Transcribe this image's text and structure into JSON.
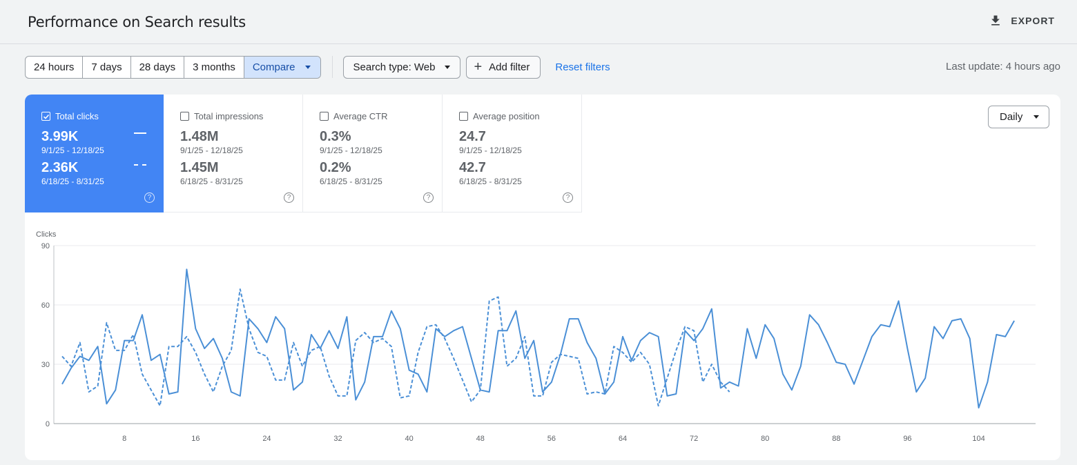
{
  "header": {
    "title": "Performance on Search results",
    "export_label": "EXPORT"
  },
  "controls": {
    "ranges": [
      "24 hours",
      "7 days",
      "28 days",
      "3 months"
    ],
    "compare_label": "Compare",
    "search_type_label": "Search type: Web",
    "add_filter_label": "Add filter",
    "reset_label": "Reset filters",
    "last_update": "Last update: 4 hours ago"
  },
  "metrics": [
    {
      "label": "Total clicks",
      "value1": "3.99K",
      "range1": "9/1/25 - 12/18/25",
      "value2": "2.36K",
      "range2": "6/18/25 - 8/31/25",
      "active": true
    },
    {
      "label": "Total impressions",
      "value1": "1.48M",
      "range1": "9/1/25 - 12/18/25",
      "value2": "1.45M",
      "range2": "6/18/25 - 8/31/25",
      "active": false
    },
    {
      "label": "Average CTR",
      "value1": "0.3%",
      "range1": "9/1/25 - 12/18/25",
      "value2": "0.2%",
      "range2": "6/18/25 - 8/31/25",
      "active": false
    },
    {
      "label": "Average position",
      "value1": "24.7",
      "range1": "9/1/25 - 12/18/25",
      "value2": "42.7",
      "range2": "6/18/25 - 8/31/25",
      "active": false
    }
  ],
  "granularity": "Daily",
  "help_glyph": "?",
  "colors": {
    "accent": "#4285f4",
    "line": "#4a8fd6",
    "link": "#1a73e8"
  },
  "chart_data": {
    "type": "line",
    "ylabel": "Clicks",
    "ylim": [
      0,
      90
    ],
    "yticks": [
      0,
      30,
      60,
      90
    ],
    "xlim": [
      1,
      109
    ],
    "xticks": [
      8,
      16,
      24,
      32,
      40,
      48,
      56,
      64,
      72,
      80,
      88,
      96,
      104
    ],
    "grid": true,
    "series": [
      {
        "style": "solid",
        "values": [
          20,
          28,
          34,
          32,
          39,
          10,
          17,
          42,
          42,
          55,
          32,
          35,
          15,
          16,
          78,
          48,
          38,
          43,
          33,
          16,
          14,
          53,
          48,
          41,
          54,
          48,
          17,
          21,
          45,
          38,
          47,
          38,
          54,
          12,
          21,
          44,
          44,
          57,
          48,
          27,
          25,
          16,
          48,
          44,
          47,
          49,
          33,
          17,
          16,
          47,
          47,
          57,
          33,
          42,
          16,
          21,
          35,
          53,
          53,
          41,
          33,
          15,
          21,
          44,
          32,
          42,
          46,
          44,
          14,
          15,
          47,
          42,
          48,
          58,
          18,
          21,
          19,
          48,
          33,
          50,
          43,
          25,
          17,
          29,
          55,
          50,
          41,
          31,
          30,
          20,
          32,
          44,
          50,
          49,
          62,
          38,
          16,
          23,
          49,
          43,
          52,
          53,
          43,
          8,
          21,
          45,
          44,
          52
        ]
      },
      {
        "style": "dashed",
        "values": [
          34,
          29,
          41,
          16,
          19,
          51,
          37,
          37,
          45,
          25,
          17,
          9,
          39,
          39,
          44,
          36,
          25,
          16,
          29,
          37,
          68,
          48,
          36,
          34,
          22,
          22,
          41,
          29,
          37,
          39,
          24,
          14,
          14,
          42,
          46,
          41,
          43,
          39,
          13,
          14,
          36,
          49,
          50,
          43,
          33,
          22,
          11,
          17,
          62,
          64,
          29,
          33,
          44,
          14,
          14,
          31,
          35,
          34,
          33,
          15,
          16,
          15,
          39,
          36,
          31,
          36,
          30,
          9,
          23,
          37,
          49,
          47,
          21,
          30,
          21,
          16
        ]
      }
    ]
  }
}
